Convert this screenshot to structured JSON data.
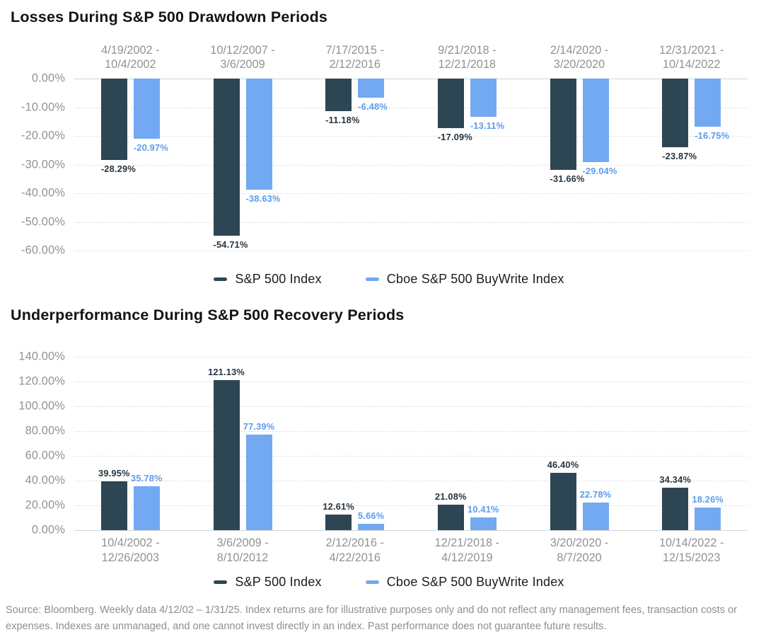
{
  "chart_data": [
    {
      "type": "bar",
      "title": "Losses During S&P 500 Drawdown Periods",
      "bar_direction": "down",
      "category_label_position": "top",
      "grid": "horizontal-dashed",
      "legend_position": "bottom-center",
      "ylim": [
        -60,
        0
      ],
      "yticks": [
        0,
        -10,
        -20,
        -30,
        -40,
        -50,
        -60
      ],
      "ytick_labels": [
        "0.00%",
        "-10.00%",
        "-20.00%",
        "-30.00%",
        "-40.00%",
        "-50.00%",
        "-60.00%"
      ],
      "categories": [
        "4/19/2002 - 10/4/2002",
        "10/12/2007 - 3/6/2009",
        "7/17/2015 - 2/12/2016",
        "9/21/2018 - 12/21/2018",
        "2/14/2020 - 3/20/2020",
        "12/31/2021 - 10/14/2022"
      ],
      "series": [
        {
          "name": "S&P 500 Index",
          "color": "#2E4653",
          "label_color": "#263540",
          "values": [
            -28.29,
            -54.71,
            -11.18,
            -17.09,
            -31.66,
            -23.87
          ],
          "value_labels": [
            "-28.29%",
            "-54.71%",
            "-11.18%",
            "-17.09%",
            "-31.66%",
            "-23.87%"
          ]
        },
        {
          "name": "Cboe S&P 500 BuyWrite Index",
          "color": "#72A9F2",
          "label_color": "#5B9CEF",
          "values": [
            -20.97,
            -38.63,
            -6.48,
            -13.11,
            -29.04,
            -16.75
          ],
          "value_labels": [
            "-20.97%",
            "-38.63%",
            "-6.48%",
            "-13.11%",
            "-29.04%",
            "-16.75%"
          ]
        }
      ]
    },
    {
      "type": "bar",
      "title": "Underperformance During S&P 500 Recovery Periods",
      "bar_direction": "up",
      "category_label_position": "bottom",
      "grid": "horizontal-dashed",
      "legend_position": "bottom-center",
      "ylim": [
        0,
        140
      ],
      "yticks": [
        140,
        120,
        100,
        80,
        60,
        40,
        20,
        0
      ],
      "ytick_labels": [
        "140.00%",
        "120.00%",
        "100.00%",
        "80.00%",
        "60.00%",
        "40.00%",
        "20.00%",
        "0.00%"
      ],
      "categories": [
        "10/4/2002 - 12/26/2003",
        "3/6/2009 - 8/10/2012",
        "2/12/2016 - 4/22/2016",
        "12/21/2018 - 4/12/2019",
        "3/20/2020 - 8/7/2020",
        "10/14/2022 - 12/15/2023"
      ],
      "series": [
        {
          "name": "S&P 500 Index",
          "color": "#2E4653",
          "label_color": "#263540",
          "values": [
            39.95,
            121.13,
            12.61,
            21.08,
            46.4,
            34.34
          ],
          "value_labels": [
            "39.95%",
            "121.13%",
            "12.61%",
            "21.08%",
            "46.40%",
            "34.34%"
          ]
        },
        {
          "name": "Cboe S&P 500 BuyWrite Index",
          "color": "#72A9F2",
          "label_color": "#5B9CEF",
          "values": [
            35.78,
            77.39,
            5.66,
            10.41,
            22.78,
            18.26
          ],
          "value_labels": [
            "35.78%",
            "77.39%",
            "5.66%",
            "10.41%",
            "22.78%",
            "18.26%"
          ]
        }
      ]
    }
  ],
  "colors": {
    "sp500": "#2E4653",
    "buywrite": "#72A9F2",
    "axis_text": "#8F9296",
    "gridline": "#E2E2E4",
    "baseline": "#D5D5D7",
    "title": "#131313",
    "footer_text": "#8B8E91"
  },
  "footer": {
    "text": "Source: Bloomberg. Weekly data 4/12/02 – 1/31/25. Index returns are for illustrative purposes only and do not reflect any management fees, transaction costs or expenses. Indexes are unmanaged, and one cannot invest directly in an index. Past performance does not guarantee future results."
  }
}
